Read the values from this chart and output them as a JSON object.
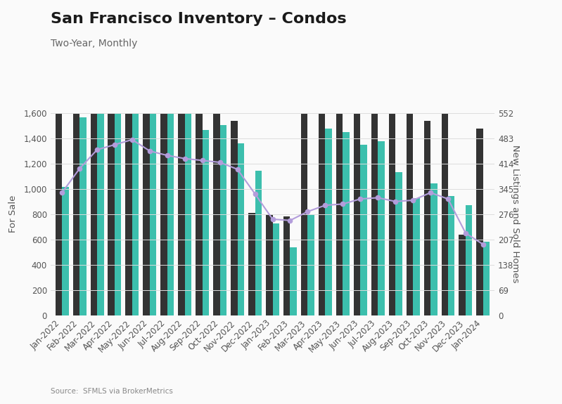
{
  "title": "San Francisco Inventory – Condos",
  "subtitle": "Two-Year, Monthly",
  "source": "Source:  SFMLS via BrokerMetrics",
  "ylabel_left": "For Sale",
  "ylabel_right": "New Listings and Sold Homes",
  "categories": [
    "Jan-2022",
    "Feb-2022",
    "Mar-2022",
    "Apr-2022",
    "May-2022",
    "Jun-2022",
    "Jul-2022",
    "Aug-2022",
    "Sep-2022",
    "Oct-2022",
    "Nov-2022",
    "Dec-2022",
    "Jan-2023",
    "Feb-2023",
    "Mar-2023",
    "Apr-2023",
    "May-2023",
    "Jun-2023",
    "Jul-2023",
    "Aug-2023",
    "Sep-2023",
    "Oct-2023",
    "Nov-2023",
    "Dec-2023",
    "Jan-2024"
  ],
  "for_sale": [
    970,
    1160,
    1310,
    1350,
    1390,
    1300,
    1265,
    1240,
    1225,
    1210,
    1155,
    960,
    760,
    750,
    820,
    870,
    880,
    920,
    930,
    900,
    910,
    970,
    920,
    650,
    560
  ],
  "new_listings": [
    1160,
    1180,
    1390,
    1190,
    1060,
    790,
    820,
    830,
    820,
    960,
    530,
    280,
    275,
    270,
    710,
    670,
    660,
    725,
    720,
    610,
    560,
    530,
    840,
    220,
    510
  ],
  "sold": [
    350,
    540,
    860,
    870,
    860,
    815,
    710,
    680,
    505,
    520,
    470,
    395,
    250,
    185,
    275,
    510,
    500,
    465,
    475,
    390,
    320,
    360,
    325,
    300,
    200
  ],
  "bar_color_new_listings": "#333333",
  "bar_color_sold": "#3cbfad",
  "line_color_for_sale": "#b39ddb",
  "ylim_left": [
    0,
    1600
  ],
  "ylim_right": [
    0,
    552
  ],
  "yticks_left": [
    0,
    200,
    400,
    600,
    800,
    1000,
    1200,
    1400,
    1600
  ],
  "yticks_right": [
    0,
    69,
    138,
    207,
    276,
    345,
    414,
    483,
    552
  ],
  "background_color": "#fafafa",
  "grid_color": "#dddddd",
  "title_fontsize": 16,
  "subtitle_fontsize": 10,
  "tick_fontsize": 8.5,
  "axis_label_fontsize": 9.5,
  "source_fontsize": 7.5
}
